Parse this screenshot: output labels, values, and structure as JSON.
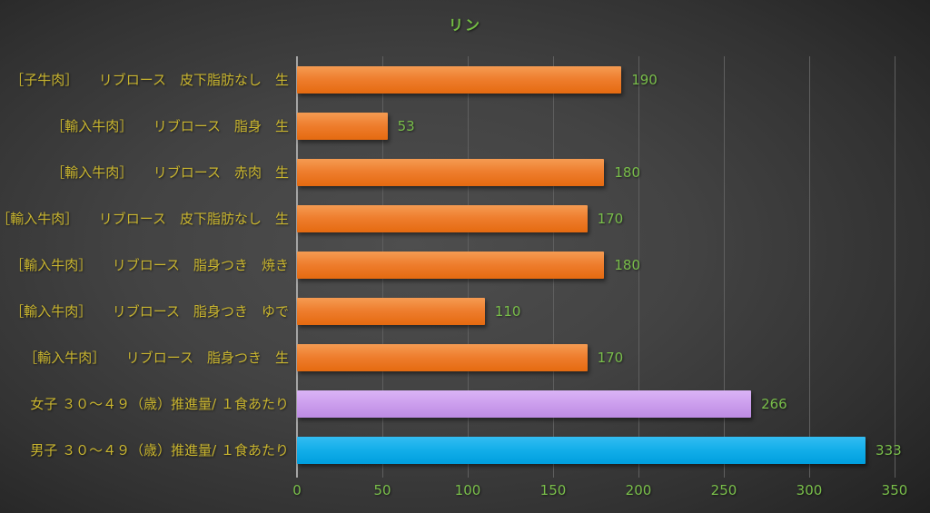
{
  "chart_data": {
    "type": "bar",
    "orientation": "horizontal",
    "title": "リン",
    "categories": [
      "［子牛肉］　　リブロース　皮下脂肪なし　生",
      "［輸入牛肉］　　リブロース　脂身　生",
      "［輸入牛肉］　　リブロース　赤肉　生",
      "［輸入牛肉］　　リブロース　皮下脂肪なし　生",
      "［輸入牛肉］　　リブロース　脂身つき　焼き",
      "［輸入牛肉］　　リブロース　脂身つき　ゆで",
      "［輸入牛肉］　　リブロース　脂身つき　生",
      "女子 ３０～４９（歳）推進量/ １食あたり",
      "男子 ３０～４９（歳）推進量/ １食あたり"
    ],
    "values": [
      190,
      53,
      180,
      170,
      180,
      110,
      170,
      266,
      333
    ],
    "data_labels": [
      "190",
      "53",
      "180",
      "170",
      "180",
      "110",
      "170",
      "266",
      "333"
    ],
    "bar_styles": [
      "orange",
      "orange",
      "orange",
      "orange",
      "orange",
      "orange",
      "orange",
      "purple",
      "blue"
    ],
    "bar_base_colors": {
      "orange": "#ED7D31",
      "purple": "#CC9EED",
      "blue": "#12AEE9"
    },
    "xlim": [
      0,
      350
    ],
    "x_ticks": [
      "0",
      "50",
      "100",
      "150",
      "200",
      "250",
      "300",
      "350"
    ],
    "grid": true,
    "legend": false,
    "colors": {
      "title": "#74BE43",
      "category_label": "#C9B52F",
      "value_label": "#79BE4A",
      "tick_label": "#79BE4A",
      "gridline": "#5F5F5F",
      "axis_line": "#A5A5A5"
    }
  }
}
